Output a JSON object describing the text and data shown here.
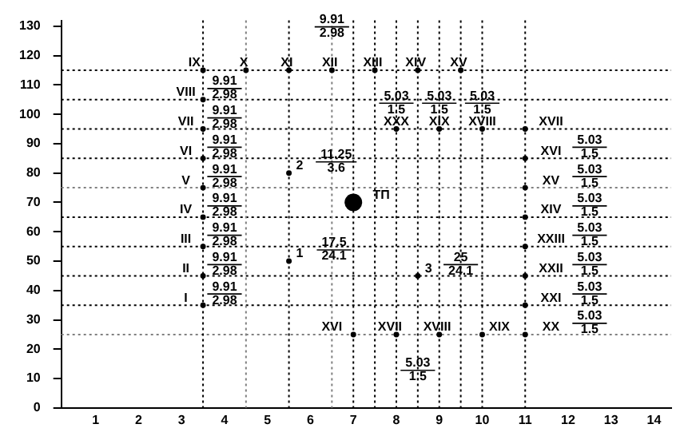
{
  "chart_data": {
    "type": "bubble",
    "color": "#000000",
    "x": [
      3.5,
      3.5,
      3.5,
      3.5,
      3.5,
      3.5,
      3.5,
      3.5,
      3.5,
      4.5,
      5.5,
      6.5,
      7.5,
      8.5,
      9.5,
      11,
      11,
      11,
      11,
      11,
      11,
      11,
      11,
      8,
      9,
      10,
      7,
      8,
      9,
      10,
      5.5,
      5.5,
      8.5,
      7
    ],
    "values": [
      35,
      45,
      55,
      65,
      75,
      85,
      95,
      105,
      115,
      115,
      115,
      115,
      115,
      115,
      115,
      95,
      85,
      75,
      65,
      55,
      45,
      35,
      25,
      95,
      95,
      95,
      25,
      25,
      25,
      25,
      50,
      80,
      45,
      70
    ],
    "sizes": [
      0.1,
      0.1,
      0.1,
      0.1,
      0.1,
      0.1,
      0.1,
      0.1,
      0.1,
      0.1,
      0.1,
      0.1,
      0.1,
      0.1,
      0.1,
      0.1,
      0.1,
      0.1,
      0.1,
      0.1,
      0.1,
      0.1,
      0.1,
      0.1,
      0.1,
      0.1,
      0.1,
      0.1,
      0.1,
      0.1,
      0.1,
      0.1,
      0.1,
      1
    ],
    "xlim": [
      0.2,
      14.4
    ],
    "ylim": [
      0,
      132
    ],
    "xticks": [
      1,
      2,
      3,
      4,
      5,
      6,
      7,
      8,
      9,
      10,
      11,
      12,
      13,
      14
    ],
    "yticks": [
      0,
      10,
      20,
      30,
      40,
      50,
      60,
      70,
      80,
      90,
      100,
      110,
      120,
      130
    ],
    "grid": false,
    "legend": false,
    "ref_lines": [
      {
        "axis": "y",
        "value": 25,
        "color": "#808080",
        "line_style": "dotted"
      },
      {
        "axis": "y",
        "value": 35,
        "color": "#000000",
        "line_style": "dotted"
      },
      {
        "axis": "y",
        "value": 45,
        "color": "#000000",
        "line_style": "dotted"
      },
      {
        "axis": "y",
        "value": 55,
        "color": "#000000",
        "line_style": "dotted"
      },
      {
        "axis": "y",
        "value": 65,
        "color": "#000000",
        "line_style": "dotted"
      },
      {
        "axis": "y",
        "value": 75,
        "color": "#808080",
        "line_style": "dotted"
      },
      {
        "axis": "y",
        "value": 85,
        "color": "#000000",
        "line_style": "dotted"
      },
      {
        "axis": "y",
        "value": 95,
        "color": "#000000",
        "line_style": "dotted"
      },
      {
        "axis": "y",
        "value": 105,
        "color": "#000000",
        "line_style": "dotted"
      },
      {
        "axis": "y",
        "value": 115,
        "color": "#000000",
        "line_style": "dotted"
      },
      {
        "axis": "x",
        "value": 3.5,
        "color": "#000000",
        "line_style": "dotted"
      },
      {
        "axis": "x",
        "value": 4.5,
        "color": "#808080",
        "line_style": "dotted"
      },
      {
        "axis": "x",
        "value": 5.5,
        "color": "#000000",
        "line_style": "dotted"
      },
      {
        "axis": "x",
        "value": 6.5,
        "color": "#808080",
        "line_style": "dotted"
      },
      {
        "axis": "x",
        "value": 7,
        "color": "#000000",
        "line_style": "dotted"
      },
      {
        "axis": "x",
        "value": 7.5,
        "color": "#000000",
        "line_style": "dotted"
      },
      {
        "axis": "x",
        "value": 8,
        "color": "#000000",
        "line_style": "dotted"
      },
      {
        "axis": "x",
        "value": 8.5,
        "color": "#000000",
        "line_style": "dotted"
      },
      {
        "axis": "x",
        "value": 9,
        "color": "#000000",
        "line_style": "dotted"
      },
      {
        "axis": "x",
        "value": 9.5,
        "color": "#000000",
        "line_style": "dotted"
      },
      {
        "axis": "x",
        "value": 10,
        "color": "#000000",
        "line_style": "dotted"
      },
      {
        "axis": "x",
        "value": 11,
        "color": "#000000",
        "line_style": "dotted"
      }
    ],
    "annotations": [
      {
        "text": "I",
        "x": 3.1,
        "y": 35
      },
      {
        "text": "II",
        "x": 3.1,
        "y": 45
      },
      {
        "text": "III",
        "x": 3.1,
        "y": 55
      },
      {
        "text": "IV",
        "x": 3.1,
        "y": 65
      },
      {
        "text": "V",
        "x": 3.1,
        "y": 75
      },
      {
        "text": "VI",
        "x": 3.1,
        "y": 85
      },
      {
        "text": "VII",
        "x": 3.1,
        "y": 95
      },
      {
        "text": "VIII",
        "x": 3.1,
        "y": 105
      },
      {
        "text": "9.91\n2.98",
        "x": 4.0,
        "y": 35
      },
      {
        "text": "9.91\n2.98",
        "x": 4.0,
        "y": 45
      },
      {
        "text": "9.91\n2.98",
        "x": 4.0,
        "y": 55
      },
      {
        "text": "9.91\n2.98",
        "x": 4.0,
        "y": 65
      },
      {
        "text": "9.91\n2.98",
        "x": 4.0,
        "y": 75
      },
      {
        "text": "9.91\n2.98",
        "x": 4.0,
        "y": 85
      },
      {
        "text": "9.91\n2.98",
        "x": 4.0,
        "y": 95
      },
      {
        "text": "9.91\n2.98",
        "x": 4.0,
        "y": 105
      },
      {
        "text": "IX",
        "x": 3.3,
        "y": 115
      },
      {
        "text": "X",
        "x": 4.45,
        "y": 115
      },
      {
        "text": "XI",
        "x": 5.45,
        "y": 115
      },
      {
        "text": "XII",
        "x": 6.45,
        "y": 115
      },
      {
        "text": "XIII",
        "x": 7.45,
        "y": 115
      },
      {
        "text": "XIV",
        "x": 8.45,
        "y": 115
      },
      {
        "text": "XV",
        "x": 9.45,
        "y": 115
      },
      {
        "text": "9.91\n2.98",
        "x": 6.5,
        "y": 126
      },
      {
        "text": "XXX",
        "x": 8,
        "y": 95
      },
      {
        "text": "XIX",
        "x": 9,
        "y": 95
      },
      {
        "text": "XVIII",
        "x": 10,
        "y": 95
      },
      {
        "text": "5.03\n1.5",
        "x": 8,
        "y": 100
      },
      {
        "text": "5.03\n1.5",
        "x": 9,
        "y": 100
      },
      {
        "text": "5.03\n1.5",
        "x": 10,
        "y": 100
      },
      {
        "text": "XVII",
        "x": 11.6,
        "y": 95
      },
      {
        "text": "XVI",
        "x": 11.6,
        "y": 85
      },
      {
        "text": "XV",
        "x": 11.6,
        "y": 75
      },
      {
        "text": "XIV",
        "x": 11.6,
        "y": 65
      },
      {
        "text": "XXIII",
        "x": 11.6,
        "y": 55
      },
      {
        "text": "XXII",
        "x": 11.6,
        "y": 45
      },
      {
        "text": "XXI",
        "x": 11.6,
        "y": 35
      },
      {
        "text": "XX",
        "x": 11.6,
        "y": 25
      },
      {
        "text": "5.03\n1.5",
        "x": 12.5,
        "y": 85
      },
      {
        "text": "5.03\n1.5",
        "x": 12.5,
        "y": 75
      },
      {
        "text": "5.03\n1.5",
        "x": 12.5,
        "y": 65
      },
      {
        "text": "5.03\n1.5",
        "x": 12.5,
        "y": 55
      },
      {
        "text": "5.03\n1.5",
        "x": 12.5,
        "y": 45
      },
      {
        "text": "5.03\n1.5",
        "x": 12.5,
        "y": 35
      },
      {
        "text": "5.03\n1.5",
        "x": 12.5,
        "y": 25
      },
      {
        "text": "XVI",
        "x": 6.5,
        "y": 25
      },
      {
        "text": "XVII",
        "x": 7.85,
        "y": 25
      },
      {
        "text": "XVIII",
        "x": 8.95,
        "y": 25
      },
      {
        "text": "XIX",
        "x": 10.4,
        "y": 25
      },
      {
        "text": "5.03\n1.5",
        "x": 8.5,
        "y": 9
      },
      {
        "text": "1",
        "x": 5.75,
        "y": 50
      },
      {
        "text": "17.5\n24.1",
        "x": 6.55,
        "y": 50
      },
      {
        "text": "2",
        "x": 5.75,
        "y": 80
      },
      {
        "text": "11.25\n3.6",
        "x": 6.6,
        "y": 80
      },
      {
        "text": "3",
        "x": 8.75,
        "y": 45
      },
      {
        "text": "25\n24.1",
        "x": 9.5,
        "y": 45
      },
      {
        "text": "ТП",
        "x": 7.65,
        "y": 70
      }
    ]
  }
}
